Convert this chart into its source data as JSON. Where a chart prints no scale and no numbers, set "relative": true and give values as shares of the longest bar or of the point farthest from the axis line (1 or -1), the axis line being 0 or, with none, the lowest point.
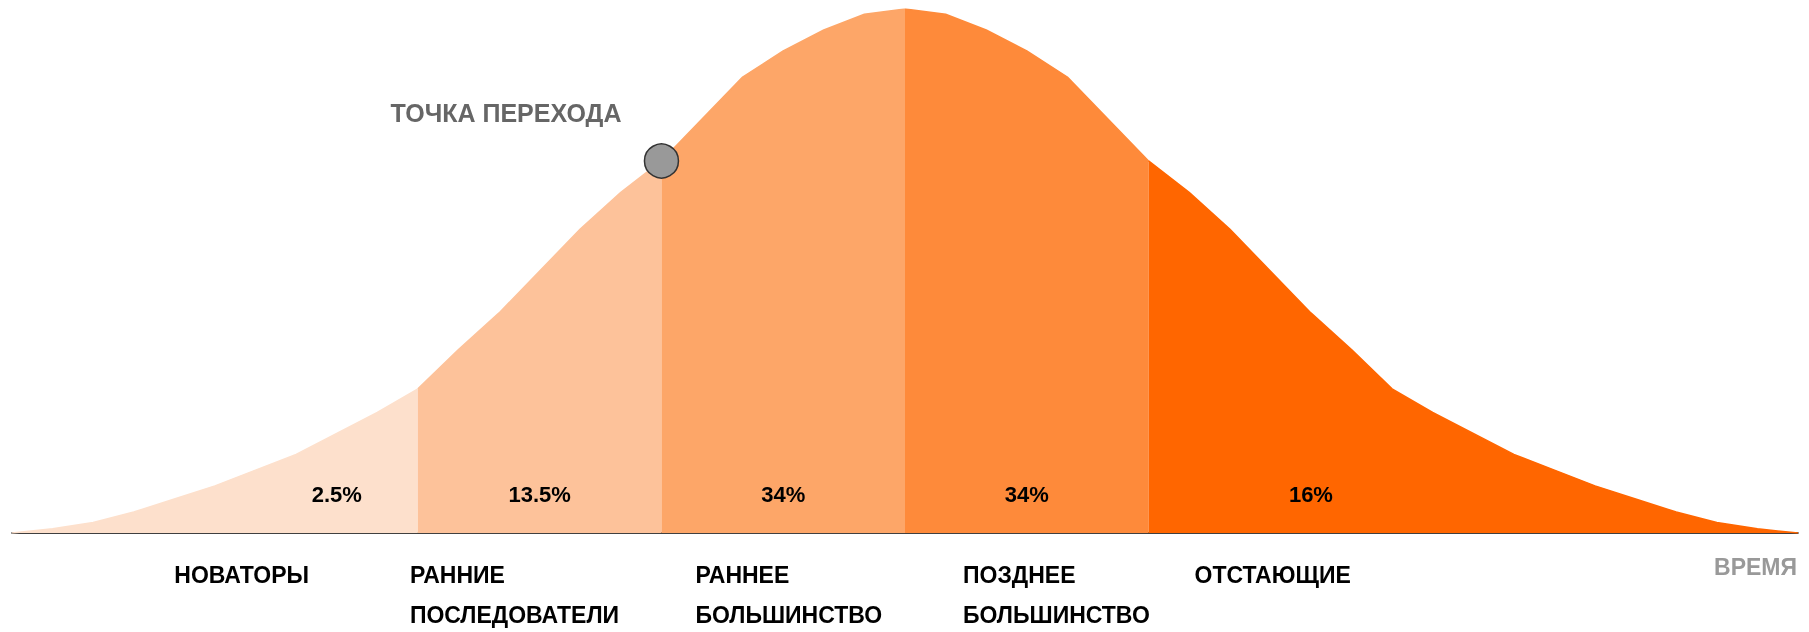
{
  "chart_data": {
    "type": "area",
    "relative": true,
    "xlabel": "ВРЕМЯ",
    "legend": false,
    "grid": false,
    "marker": "none",
    "categories": [
      null,
      null,
      null,
      null,
      null,
      null,
      null,
      null,
      null,
      null,
      null,
      null,
      null,
      null,
      null,
      null,
      null,
      null,
      null,
      null,
      null,
      null,
      null,
      null,
      null,
      null,
      null,
      null,
      null,
      null,
      null,
      null,
      null,
      null,
      null,
      null,
      null,
      null,
      null,
      null,
      null,
      null,
      null,
      null,
      null
    ],
    "series": [
      {
        "name": "НОВАТОРЫ",
        "color": "#fde0cc",
        "values": [
          0,
          0.008,
          0.02,
          0.04,
          0.065,
          0.09,
          0.12,
          0.15,
          0.19,
          0.23,
          0.275,
          null,
          null,
          null,
          null,
          null,
          null,
          null,
          null,
          null,
          null,
          null,
          null,
          null,
          null,
          null,
          null,
          null,
          null,
          null,
          null,
          null,
          null,
          null,
          null,
          null,
          null,
          null,
          null,
          null,
          null,
          null,
          null,
          null,
          null
        ]
      },
      {
        "name": "РАННИЕ ПОСЛЕДОВАТЕЛИ",
        "color": "#fdc29a",
        "values": [
          null,
          null,
          null,
          null,
          null,
          null,
          null,
          null,
          null,
          null,
          0.275,
          0.35,
          0.42,
          0.5,
          0.58,
          0.65,
          0.71,
          null,
          null,
          null,
          null,
          null,
          null,
          null,
          null,
          null,
          null,
          null,
          null,
          null,
          null,
          null,
          null,
          null,
          null,
          null,
          null,
          null,
          null,
          null,
          null,
          null,
          null,
          null,
          null
        ]
      },
      {
        "name": "РАННЕЕ БОЛЬШИНСТВО",
        "color": "#fda668",
        "values": [
          null,
          null,
          null,
          null,
          null,
          null,
          null,
          null,
          null,
          null,
          null,
          null,
          null,
          null,
          null,
          null,
          0.71,
          0.79,
          0.87,
          0.92,
          0.96,
          0.99,
          1,
          null,
          null,
          null,
          null,
          null,
          null,
          null,
          null,
          null,
          null,
          null,
          null,
          null,
          null,
          null,
          null,
          null,
          null,
          null,
          null,
          null,
          null
        ]
      },
      {
        "name": "ПОЗДНЕЕ БОЛЬШИНСТВО",
        "color": "#fe8a3a",
        "values": [
          null,
          null,
          null,
          null,
          null,
          null,
          null,
          null,
          null,
          null,
          null,
          null,
          null,
          null,
          null,
          null,
          null,
          null,
          null,
          null,
          null,
          null,
          1,
          0.99,
          0.96,
          0.92,
          0.87,
          0.79,
          0.71,
          null,
          null,
          null,
          null,
          null,
          null,
          null,
          null,
          null,
          null,
          null,
          null,
          null,
          null,
          null,
          null
        ]
      },
      {
        "name": "ОТСТАЮЩИЕ",
        "color": "#ff6600",
        "values": [
          null,
          null,
          null,
          null,
          null,
          null,
          null,
          null,
          null,
          null,
          null,
          null,
          null,
          null,
          null,
          null,
          null,
          null,
          null,
          null,
          null,
          null,
          null,
          null,
          null,
          null,
          null,
          null,
          0.71,
          0.65,
          0.58,
          0.5,
          0.42,
          0.35,
          0.275,
          0.23,
          0.19,
          0.15,
          0.12,
          0.09,
          0.065,
          0.04,
          0.02,
          0.008,
          0
        ]
      }
    ],
    "annotations": [
      "2.5%",
      "13.5%",
      "34%",
      "34%",
      "16%",
      "ТОЧКА ПЕРЕХОДА"
    ]
  }
}
